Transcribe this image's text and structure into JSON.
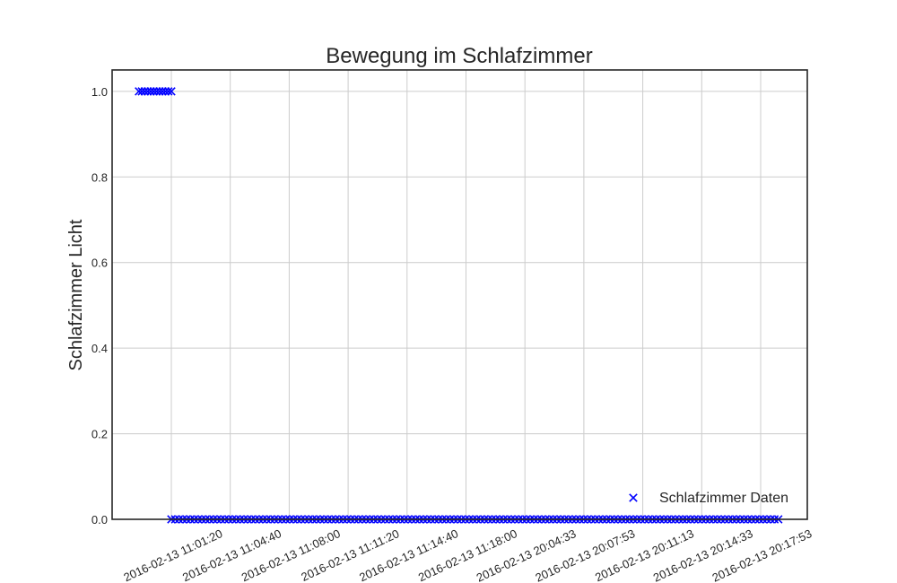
{
  "chart_data": {
    "type": "scatter",
    "title": "Bewegung im Schlafzimmer",
    "xlabel": "",
    "ylabel": "Schlafzimmer Licht",
    "x_tick_labels": [
      "2016-02-13 11:01:20",
      "2016-02-13 11:04:40",
      "2016-02-13 11:08:00",
      "2016-02-13 11:11:20",
      "2016-02-13 11:14:40",
      "2016-02-13 11:18:00",
      "2016-02-13 20:04:33",
      "2016-02-13 20:07:53",
      "2016-02-13 20:11:13",
      "2016-02-13 20:14:33",
      "2016-02-13 20:17:53"
    ],
    "y_ticks": [
      0.0,
      0.2,
      0.4,
      0.6,
      0.8,
      1.0
    ],
    "y_tick_labels": [
      "0.0",
      "0.2",
      "0.4",
      "0.6",
      "0.8",
      "1.0"
    ],
    "ylim": [
      0.0,
      1.05
    ],
    "grid": true,
    "legend": {
      "position": "lower-right",
      "entries": [
        "Schlafzimmer Daten"
      ]
    },
    "series": [
      {
        "name": "Schlafzimmer Daten",
        "marker": "x",
        "color": "#0000ff",
        "segments": [
          {
            "x_start_tick": -0.55,
            "x_end_tick": 0.0,
            "y": 1.0,
            "count": 12
          },
          {
            "x_start_tick": 0.0,
            "x_end_tick": 10.3,
            "y": 0.0,
            "count": 160
          }
        ]
      }
    ]
  }
}
